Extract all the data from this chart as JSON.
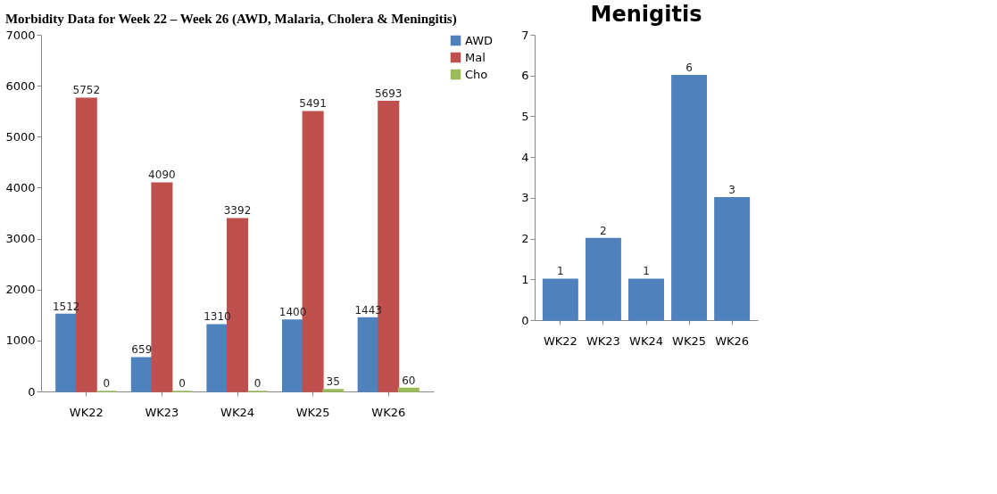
{
  "chart_data": [
    {
      "type": "bar",
      "title": "Morbidity Data for Week 22 – Week 26 (AWD, Malaria, Cholera & Meningitis)",
      "categories": [
        "WK22",
        "WK23",
        "WK24",
        "WK25",
        "WK26"
      ],
      "series": [
        {
          "name": "AWD",
          "color": "#4f81bd",
          "values": [
            1512,
            659,
            1310,
            1400,
            1443
          ]
        },
        {
          "name": "Mal",
          "color": "#c0504d",
          "values": [
            5752,
            4090,
            3392,
            5491,
            5693
          ]
        },
        {
          "name": "Cho",
          "color": "#9bbb59",
          "values": [
            0,
            0,
            0,
            35,
            60
          ]
        }
      ],
      "ylim": [
        0,
        7000
      ],
      "yticks": [
        0,
        1000,
        2000,
        3000,
        4000,
        5000,
        6000,
        7000
      ],
      "grid": false,
      "legend": "right",
      "data_labels": true
    },
    {
      "type": "bar",
      "title": "Menigitis",
      "categories": [
        "WK22",
        "WK23",
        "WK24",
        "WK25",
        "WK26"
      ],
      "series": [
        {
          "color": "#4f81bd",
          "values": [
            1,
            2,
            1,
            6,
            3
          ]
        }
      ],
      "ylim": [
        0,
        7
      ],
      "yticks": [
        0,
        1,
        2,
        3,
        4,
        5,
        6,
        7
      ],
      "grid": false,
      "legend": false,
      "data_labels": true
    }
  ]
}
